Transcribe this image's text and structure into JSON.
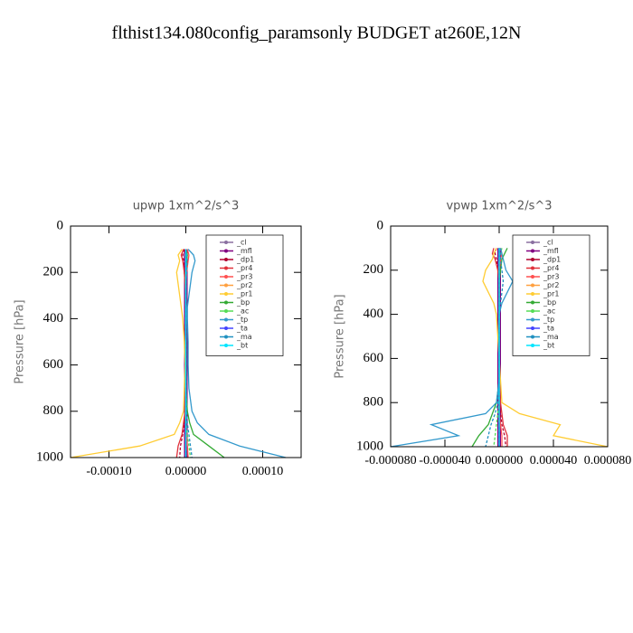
{
  "title": "flthist134.080config_paramsonly  BUDGET at260E,12N",
  "chart_data": [
    {
      "type": "line",
      "title": "upwp  1xm^2/s^3",
      "y_label": "Pressure [hPa]",
      "legend": "upper right",
      "y": [
        100,
        125,
        150,
        200,
        250,
        300,
        350,
        400,
        500,
        600,
        700,
        800,
        850,
        900,
        950,
        1000
      ],
      "ylim": [
        1000,
        0
      ],
      "yticks": [
        0,
        200,
        400,
        600,
        800,
        1000
      ],
      "xlim": [
        -0.00015,
        0.00015
      ],
      "xticks": [
        {
          "value": -0.0001,
          "label": "-0.00010"
        },
        {
          "value": 0,
          "label": "0.00000"
        },
        {
          "value": 0.0001,
          "label": "0.00010"
        }
      ],
      "series": [
        {
          "name": "_cl",
          "color": "#8a6fa0",
          "values": [
            0,
            0,
            0,
            0,
            0,
            0,
            0,
            0,
            0,
            0,
            0,
            0,
            0,
            0,
            0,
            0
          ]
        },
        {
          "name": "_mfl",
          "color": "#800080",
          "values": [
            0,
            0,
            0,
            0,
            0,
            0,
            0,
            0,
            0,
            0,
            0,
            0,
            0,
            0,
            0,
            0
          ]
        },
        {
          "name": "_dp1",
          "color": "#b00030",
          "values": [
            -2e-06,
            -4e-06,
            -3e-06,
            -2e-06,
            -1e-06,
            0,
            0,
            0,
            0,
            0,
            0,
            -1e-06,
            -2e-06,
            -4e-06,
            -7e-06,
            -8e-06
          ]
        },
        {
          "name": "_pr4",
          "color": "#e0303a",
          "values": [
            -3e-06,
            -6e-06,
            -4e-06,
            -2e-06,
            -1e-06,
            0,
            0,
            0,
            0,
            0,
            0,
            -1e-06,
            -3e-06,
            -5e-06,
            -1e-05,
            -1.2e-05
          ]
        },
        {
          "name": "_pr3",
          "color": "#ff5050",
          "values": [
            2e-06,
            4e-06,
            3e-06,
            1e-06,
            0,
            0,
            0,
            0,
            0,
            0,
            0,
            0,
            0,
            1e-06,
            2e-06,
            3e-06
          ]
        },
        {
          "name": "_pr2",
          "color": "#ffa040",
          "values": [
            0,
            0,
            0,
            0,
            0,
            0,
            0,
            0,
            0,
            0,
            0,
            0,
            0,
            0,
            0,
            0
          ]
        },
        {
          "name": "_pr1",
          "color": "#ffcc33",
          "values": [
            -5e-06,
            -1e-05,
            -8e-06,
            -1.2e-05,
            -1e-05,
            -8e-06,
            -6e-06,
            -4e-06,
            -2e-06,
            -1e-06,
            -2e-06,
            -3e-06,
            -8e-06,
            -1.5e-05,
            -6e-05,
            -0.00015
          ]
        },
        {
          "name": "_bp",
          "color": "#33aa33",
          "values": [
            0,
            2e-06,
            1e-06,
            0,
            0,
            0,
            0,
            0,
            0,
            0,
            0,
            2e-06,
            5e-06,
            1e-05,
            3e-05,
            5e-05
          ]
        },
        {
          "name": "_ac",
          "color": "#55dd55",
          "values": [
            0,
            0,
            0,
            0,
            0,
            0,
            0,
            0,
            0,
            0,
            0,
            0,
            0,
            2e-06,
            4e-06,
            6e-06
          ]
        },
        {
          "name": "_tp",
          "color": "#3399cc",
          "values": [
            3e-06,
            1e-05,
            1.2e-05,
            8e-06,
            6e-06,
            4e-06,
            2e-06,
            2e-06,
            3e-06,
            3e-06,
            4e-06,
            8e-06,
            1.5e-05,
            3e-05,
            7e-05,
            0.00013
          ]
        },
        {
          "name": "_ta",
          "color": "#4444ff",
          "values": [
            0,
            0,
            0,
            0,
            0,
            0,
            0,
            0,
            0,
            0,
            0,
            0,
            0,
            0,
            0,
            0
          ]
        },
        {
          "name": "_ma",
          "color": "#2090c0",
          "values": [
            0,
            1e-06,
            2e-06,
            1e-06,
            0,
            0,
            0,
            0,
            0,
            0,
            0,
            1e-06,
            2e-06,
            4e-06,
            6e-06,
            8e-06
          ]
        },
        {
          "name": "_bt",
          "color": "#00e5ff",
          "values": [
            0,
            0,
            0,
            0,
            0,
            0,
            0,
            0,
            0,
            0,
            0,
            0,
            0,
            0,
            0,
            0
          ]
        }
      ]
    },
    {
      "type": "line",
      "title": "vpwp  1xm^2/s^3",
      "y_label": "Pressure [hPa]",
      "legend": "upper right",
      "y": [
        100,
        125,
        150,
        200,
        250,
        300,
        350,
        400,
        500,
        600,
        700,
        800,
        850,
        900,
        950,
        1000
      ],
      "ylim": [
        1000,
        0
      ],
      "yticks": [
        0,
        200,
        400,
        600,
        800,
        1000
      ],
      "xlim": [
        -8e-05,
        8e-05
      ],
      "xticks": [
        {
          "value": -8e-05,
          "label": "-0.000080"
        },
        {
          "value": -4e-05,
          "label": "-0.000040"
        },
        {
          "value": 0,
          "label": "0.000000"
        },
        {
          "value": 4e-05,
          "label": "0.000040"
        },
        {
          "value": 8e-05,
          "label": "0.000080"
        }
      ],
      "series": [
        {
          "name": "_cl",
          "color": "#8a6fa0",
          "values": [
            0,
            0,
            0,
            0,
            0,
            0,
            0,
            0,
            0,
            0,
            0,
            0,
            0,
            0,
            0,
            0
          ]
        },
        {
          "name": "_mfl",
          "color": "#800080",
          "values": [
            0,
            0,
            0,
            0,
            0,
            0,
            0,
            0,
            0,
            0,
            0,
            0,
            0,
            0,
            0,
            0
          ]
        },
        {
          "name": "_dp1",
          "color": "#b00030",
          "values": [
            -2e-06,
            -3e-06,
            -2e-06,
            -1e-06,
            0,
            0,
            0,
            0,
            0,
            0,
            0,
            0,
            1e-06,
            2e-06,
            4e-06,
            5e-06
          ]
        },
        {
          "name": "_pr4",
          "color": "#e0303a",
          "values": [
            -4e-06,
            -5e-06,
            -3e-06,
            -1e-06,
            0,
            0,
            0,
            0,
            0,
            0,
            0,
            1e-06,
            2e-06,
            3e-06,
            6e-06,
            6e-06
          ]
        },
        {
          "name": "_pr3",
          "color": "#ff5050",
          "values": [
            1e-06,
            2e-06,
            1e-06,
            0,
            0,
            0,
            0,
            0,
            0,
            0,
            0,
            0,
            0,
            1e-06,
            2e-06,
            2e-06
          ]
        },
        {
          "name": "_pr2",
          "color": "#ffa040",
          "values": [
            0,
            0,
            0,
            0,
            0,
            0,
            0,
            0,
            0,
            0,
            0,
            0,
            0,
            0,
            0,
            0
          ]
        },
        {
          "name": "_pr1",
          "color": "#ffcc33",
          "values": [
            -2e-06,
            -4e-06,
            -5e-06,
            -1e-05,
            -1.2e-05,
            -8e-06,
            -4e-06,
            -2e-06,
            -1e-06,
            0,
            1e-06,
            2e-06,
            1.5e-05,
            4.5e-05,
            4e-05,
            8e-05
          ]
        },
        {
          "name": "_bp",
          "color": "#33aa33",
          "values": [
            6e-06,
            4e-06,
            2e-06,
            1e-06,
            0,
            0,
            0,
            0,
            0,
            0,
            0,
            -2e-06,
            -5e-06,
            -8e-06,
            -1.5e-05,
            -2e-05
          ]
        },
        {
          "name": "_ac",
          "color": "#55dd55",
          "values": [
            2e-06,
            1e-06,
            0,
            0,
            0,
            0,
            0,
            0,
            0,
            0,
            0,
            0,
            -1e-06,
            -2e-06,
            -3e-06,
            -4e-06
          ]
        },
        {
          "name": "_tp",
          "color": "#3399cc",
          "values": [
            1e-06,
            2e-06,
            3e-06,
            5e-06,
            1e-05,
            6e-06,
            2e-06,
            0,
            0,
            0,
            0,
            -2e-06,
            -1e-05,
            -5e-05,
            -3e-05,
            -8e-05
          ]
        },
        {
          "name": "_ta",
          "color": "#4444ff",
          "values": [
            0,
            0,
            0,
            0,
            0,
            0,
            0,
            0,
            0,
            0,
            0,
            0,
            0,
            0,
            0,
            0
          ]
        },
        {
          "name": "_ma",
          "color": "#2090c0",
          "values": [
            0,
            1e-06,
            1e-06,
            2e-06,
            3e-06,
            2e-06,
            1e-06,
            0,
            0,
            0,
            0,
            -1e-06,
            -3e-06,
            -6e-06,
            -8e-06,
            -1e-05
          ]
        },
        {
          "name": "_bt",
          "color": "#00e5ff",
          "values": [
            0,
            0,
            0,
            0,
            0,
            0,
            0,
            0,
            0,
            0,
            0,
            0,
            0,
            0,
            0,
            0
          ]
        }
      ]
    }
  ]
}
